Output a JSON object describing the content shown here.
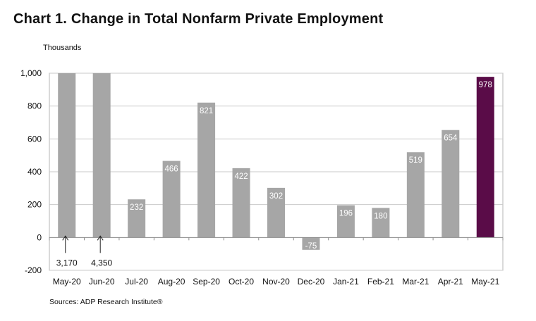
{
  "title": "Chart 1. Change in Total Nonfarm Private Employment",
  "unit_label": "Thousands",
  "source": "Sources: ADP Research Institute®",
  "colors": {
    "bar": "#a6a6a6",
    "highlight": "#5a0c48",
    "grid": "#c9c9c9",
    "axis": "#8c8c8c",
    "plot_border": "#b5b5b5"
  },
  "chart_data": {
    "type": "bar",
    "categories": [
      "May-20",
      "Jun-20",
      "Jul-20",
      "Aug-20",
      "Sep-20",
      "Oct-20",
      "Nov-20",
      "Dec-20",
      "Jan-21",
      "Feb-21",
      "Mar-21",
      "Apr-21",
      "May-21"
    ],
    "values": [
      3170,
      4350,
      232,
      466,
      821,
      422,
      302,
      -75,
      196,
      180,
      519,
      654,
      978
    ],
    "data_labels": [
      "3,170",
      "4,350",
      "232",
      "466",
      "821",
      "422",
      "302",
      "-75",
      "196",
      "180",
      "519",
      "654",
      "978"
    ],
    "clipped_at_axis_max": [
      "May-20",
      "Jun-20"
    ],
    "highlighted_category": "May-21",
    "title": "Chart 1. Change in Total Nonfarm Private Employment",
    "ylabel": "Thousands",
    "ylim": [
      -200,
      1000
    ],
    "yticks": [
      -200,
      0,
      200,
      400,
      600,
      800,
      1000
    ],
    "ytick_labels": [
      "-200",
      "0",
      "200",
      "400",
      "600",
      "800",
      "1,000"
    ],
    "grid": true,
    "legend": "none"
  }
}
